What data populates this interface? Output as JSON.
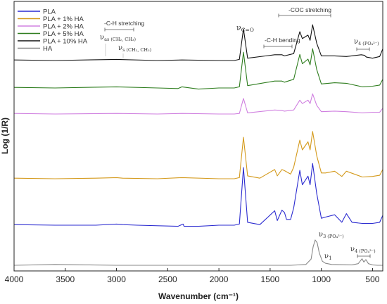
{
  "chart_data": {
    "type": "line",
    "xlabel": "Wavenumber (cm⁻¹)",
    "ylabel": "Log (1/R)",
    "xlim": [
      4000,
      400
    ],
    "x_reversed": true,
    "x_ticks": [
      4000,
      3500,
      3000,
      2500,
      2000,
      1500,
      1000,
      500
    ],
    "y_ticks": "none",
    "grid": false,
    "legend_position": "top-left",
    "series": [
      {
        "name": "PLA",
        "color": "#2b2bd0",
        "points": [
          [
            4000,
            0.01
          ],
          [
            3600,
            0.0
          ],
          [
            3200,
            0.0
          ],
          [
            3000,
            0.02
          ],
          [
            2940,
            0.01
          ],
          [
            2800,
            0.0
          ],
          [
            2400,
            -0.02
          ],
          [
            2350,
            0.02
          ],
          [
            2340,
            -0.02
          ],
          [
            2200,
            -0.02
          ],
          [
            2000,
            0.0
          ],
          [
            1850,
            0.0
          ],
          [
            1800,
            0.02
          ],
          [
            1760,
            1.0
          ],
          [
            1720,
            0.05
          ],
          [
            1600,
            0.01
          ],
          [
            1455,
            0.25
          ],
          [
            1430,
            0.08
          ],
          [
            1385,
            0.26
          ],
          [
            1360,
            0.22
          ],
          [
            1340,
            0.1
          ],
          [
            1300,
            0.1
          ],
          [
            1270,
            0.3
          ],
          [
            1210,
            0.95
          ],
          [
            1185,
            0.7
          ],
          [
            1130,
            0.85
          ],
          [
            1110,
            0.7
          ],
          [
            1085,
            1.07
          ],
          [
            1045,
            0.55
          ],
          [
            1000,
            0.12
          ],
          [
            960,
            0.14
          ],
          [
            870,
            0.18
          ],
          [
            800,
            0.05
          ],
          [
            755,
            0.2
          ],
          [
            700,
            0.05
          ],
          [
            600,
            0.03
          ],
          [
            500,
            0.03
          ],
          [
            430,
            0.05
          ],
          [
            400,
            0.17
          ]
        ]
      },
      {
        "name": "PLA + 1% HA",
        "color": "#d49a1c",
        "points": [
          [
            4000,
            0.01
          ],
          [
            3600,
            0.0
          ],
          [
            3200,
            0.01
          ],
          [
            3000,
            0.02
          ],
          [
            2940,
            0.01
          ],
          [
            2600,
            0.0
          ],
          [
            2360,
            0.02
          ],
          [
            2000,
            0.0
          ],
          [
            1850,
            0.0
          ],
          [
            1800,
            0.02
          ],
          [
            1760,
            0.72
          ],
          [
            1720,
            0.05
          ],
          [
            1600,
            0.01
          ],
          [
            1455,
            0.16
          ],
          [
            1430,
            0.05
          ],
          [
            1385,
            0.16
          ],
          [
            1360,
            0.14
          ],
          [
            1300,
            0.08
          ],
          [
            1270,
            0.2
          ],
          [
            1210,
            0.67
          ],
          [
            1185,
            0.5
          ],
          [
            1130,
            0.64
          ],
          [
            1110,
            0.5
          ],
          [
            1085,
            0.82
          ],
          [
            1045,
            0.4
          ],
          [
            1000,
            0.1
          ],
          [
            960,
            0.1
          ],
          [
            870,
            0.13
          ],
          [
            800,
            0.04
          ],
          [
            755,
            0.13
          ],
          [
            600,
            0.03
          ],
          [
            500,
            0.04
          ],
          [
            430,
            0.06
          ],
          [
            400,
            0.16
          ]
        ]
      },
      {
        "name": "PLA + 2% HA",
        "color": "#d080e0",
        "points": [
          [
            4000,
            0.01
          ],
          [
            3600,
            0.0
          ],
          [
            3000,
            0.01
          ],
          [
            2600,
            0.0
          ],
          [
            2360,
            0.01
          ],
          [
            2000,
            0.0
          ],
          [
            1850,
            0.0
          ],
          [
            1800,
            0.01
          ],
          [
            1760,
            0.27
          ],
          [
            1720,
            0.02
          ],
          [
            1455,
            0.07
          ],
          [
            1385,
            0.06
          ],
          [
            1360,
            0.05
          ],
          [
            1270,
            0.07
          ],
          [
            1210,
            0.24
          ],
          [
            1185,
            0.18
          ],
          [
            1130,
            0.24
          ],
          [
            1110,
            0.18
          ],
          [
            1085,
            0.35
          ],
          [
            1045,
            0.15
          ],
          [
            1000,
            0.04
          ],
          [
            870,
            0.05
          ],
          [
            755,
            0.04
          ],
          [
            600,
            0.02
          ],
          [
            500,
            0.03
          ],
          [
            430,
            0.03
          ],
          [
            400,
            0.1
          ]
        ]
      },
      {
        "name": "PLA + 5% HA",
        "color": "#2e7d1e",
        "points": [
          [
            4000,
            0.01
          ],
          [
            3600,
            0.0
          ],
          [
            3000,
            0.02
          ],
          [
            2600,
            0.0
          ],
          [
            2400,
            -0.01
          ],
          [
            2360,
            0.02
          ],
          [
            2200,
            -0.02
          ],
          [
            2000,
            0.0
          ],
          [
            1850,
            0.0
          ],
          [
            1800,
            0.02
          ],
          [
            1760,
            0.62
          ],
          [
            1720,
            0.04
          ],
          [
            1455,
            0.12
          ],
          [
            1385,
            0.12
          ],
          [
            1360,
            0.1
          ],
          [
            1270,
            0.15
          ],
          [
            1210,
            0.58
          ],
          [
            1185,
            0.42
          ],
          [
            1130,
            0.5
          ],
          [
            1110,
            0.4
          ],
          [
            1085,
            0.68
          ],
          [
            1045,
            0.32
          ],
          [
            1000,
            0.07
          ],
          [
            870,
            0.09
          ],
          [
            755,
            0.08
          ],
          [
            600,
            0.02
          ],
          [
            500,
            0.03
          ],
          [
            430,
            0.05
          ],
          [
            400,
            0.15
          ]
        ]
      },
      {
        "name": "PLA + 10% HA",
        "color": "#111111",
        "points": [
          [
            4000,
            0.01
          ],
          [
            3600,
            0.0
          ],
          [
            3000,
            0.02
          ],
          [
            2600,
            0.0
          ],
          [
            2360,
            0.01
          ],
          [
            2000,
            0.0
          ],
          [
            1850,
            0.0
          ],
          [
            1800,
            0.02
          ],
          [
            1760,
            0.55
          ],
          [
            1720,
            0.04
          ],
          [
            1455,
            0.1
          ],
          [
            1385,
            0.1
          ],
          [
            1360,
            0.08
          ],
          [
            1270,
            0.12
          ],
          [
            1210,
            0.5
          ],
          [
            1185,
            0.38
          ],
          [
            1130,
            0.44
          ],
          [
            1110,
            0.35
          ],
          [
            1085,
            0.62
          ],
          [
            1045,
            0.3
          ],
          [
            1000,
            0.08
          ],
          [
            870,
            0.08
          ],
          [
            755,
            0.07
          ],
          [
            610,
            0.1
          ],
          [
            580,
            0.09
          ],
          [
            560,
            0.06
          ],
          [
            500,
            0.04
          ],
          [
            430,
            0.07
          ],
          [
            400,
            0.2
          ]
        ]
      },
      {
        "name": "HA",
        "color": "#888888",
        "points": [
          [
            4000,
            0.0
          ],
          [
            3600,
            0.02
          ],
          [
            3300,
            0.01
          ],
          [
            3000,
            0.0
          ],
          [
            2500,
            0.0
          ],
          [
            2000,
            0.0
          ],
          [
            1600,
            0.0
          ],
          [
            1300,
            0.0
          ],
          [
            1150,
            0.02
          ],
          [
            1100,
            0.15
          ],
          [
            1080,
            0.45
          ],
          [
            1060,
            0.62
          ],
          [
            1040,
            0.55
          ],
          [
            1020,
            0.3
          ],
          [
            990,
            0.1
          ],
          [
            960,
            0.05
          ],
          [
            900,
            0.02
          ],
          [
            700,
            0.01
          ],
          [
            640,
            0.04
          ],
          [
            603,
            0.16
          ],
          [
            585,
            0.08
          ],
          [
            565,
            0.14
          ],
          [
            540,
            0.04
          ],
          [
            500,
            0.01
          ],
          [
            450,
            0.0
          ],
          [
            400,
            0.0
          ]
        ]
      }
    ],
    "annotations": [
      {
        "text": "-C-H stretching",
        "x": 2940
      },
      {
        "text": "ν",
        "sub": "as (CH₂, CH₃)",
        "x": 3000
      },
      {
        "text": "ν",
        "sub": "s (CH₂, CH₃)",
        "x": 2940
      },
      {
        "text": "ν",
        "sub": "C=O",
        "x": 1755
      },
      {
        "text": "-C-H bending",
        "x": 1405
      },
      {
        "text": "-COC stretching",
        "x": 1150
      },
      {
        "text": "ν",
        "sub": "4 (PO₄³⁻)",
        "x": 600
      },
      {
        "text": "ν",
        "sub": "3 (PO₄³⁻)",
        "x": 1040
      },
      {
        "text": "ν",
        "sub": "1",
        "x": 960
      },
      {
        "text": "ν",
        "sub": "4 (PO₄³⁻)",
        "x": 600
      }
    ]
  }
}
